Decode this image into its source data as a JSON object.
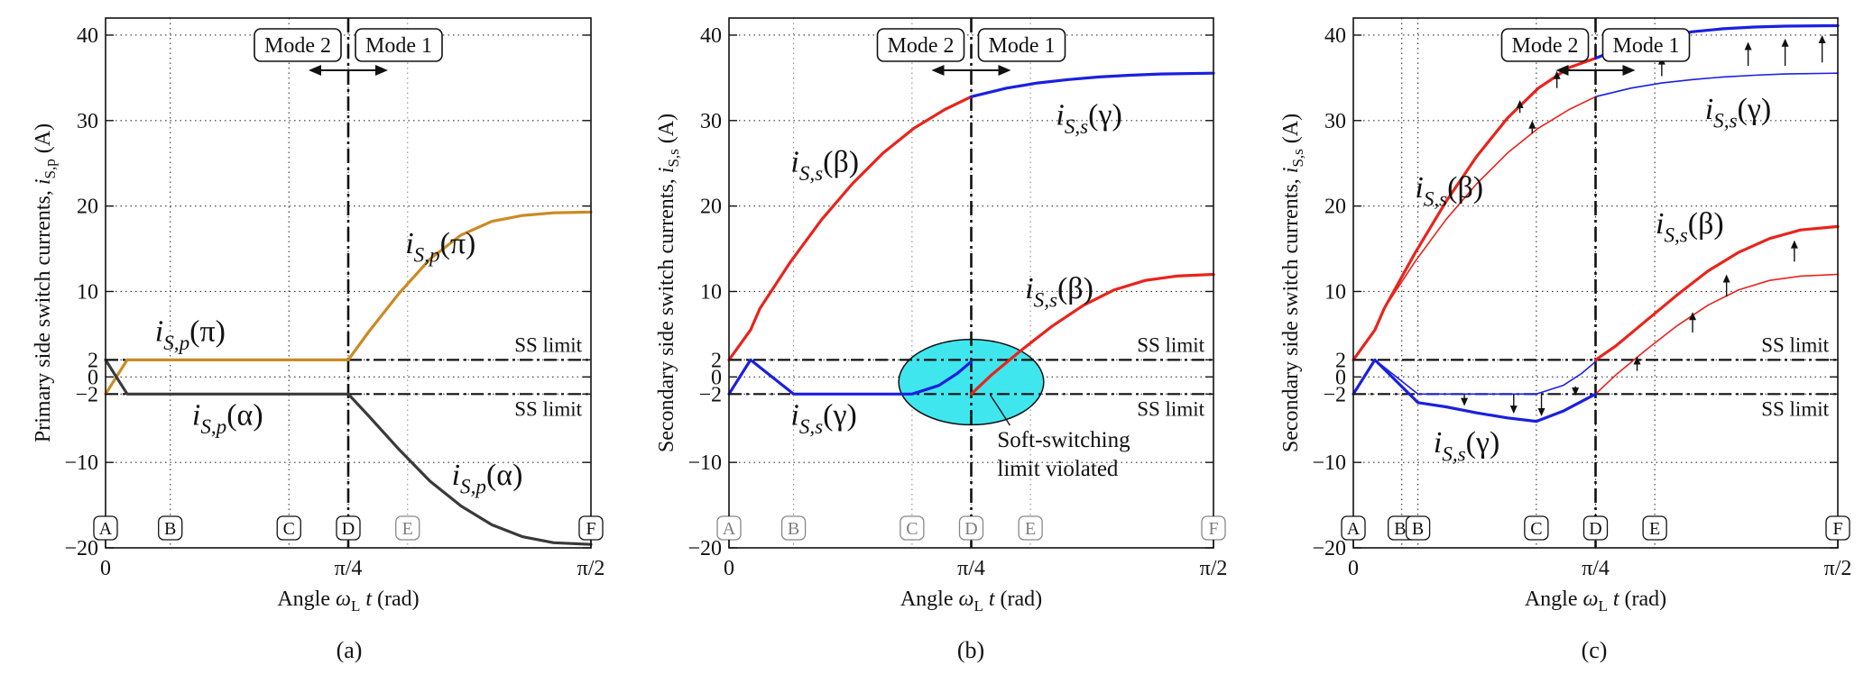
{
  "chart_data": [
    {
      "panel": "(a)",
      "type": "line",
      "ylabel": "Primary side switch currents, i_{S,p} (A)",
      "xlabel": "Angle ω_L t (rad)",
      "xlim": [
        0,
        1.5708
      ],
      "ylim": [
        -20,
        42
      ],
      "xticks": [
        {
          "v": 0,
          "label": "0"
        },
        {
          "v": 0.7854,
          "label": "π/4"
        },
        {
          "v": 1.5708,
          "label": "π/2"
        }
      ],
      "yticks": [
        {
          "v": -20,
          "label": "−20"
        },
        {
          "v": -10,
          "label": "−10"
        },
        {
          "v": -2,
          "label": "−2"
        },
        {
          "v": 0,
          "label": "0"
        },
        {
          "v": 2,
          "label": "2"
        },
        {
          "v": 10,
          "label": "10"
        },
        {
          "v": 20,
          "label": "20"
        },
        {
          "v": 30,
          "label": "30"
        },
        {
          "v": 40,
          "label": "40"
        }
      ],
      "ss_limits": [
        2,
        -2
      ],
      "ss_label": "SS limit",
      "modes": {
        "x": 0.7854,
        "left": "Mode 2",
        "right": "Mode 1"
      },
      "markers": [
        {
          "label": "A",
          "x": 0,
          "style": "solid"
        },
        {
          "label": "B",
          "x": 0.2094,
          "style": "solid"
        },
        {
          "label": "C",
          "x": 0.5934,
          "style": "solid"
        },
        {
          "label": "D",
          "x": 0.7854,
          "style": "solid"
        },
        {
          "label": "E",
          "x": 0.9774,
          "style": "faint"
        },
        {
          "label": "F",
          "x": 1.5708,
          "style": "solid"
        }
      ],
      "series": [
        {
          "name": "i_{S,p}(π)",
          "color": "#cc8a22",
          "width": 3.2,
          "points": [
            [
              0,
              -2
            ],
            [
              0.07,
              2
            ],
            [
              0.7854,
              2
            ],
            [
              0.85,
              5.2
            ],
            [
              0.95,
              9.8
            ],
            [
              1.05,
              13.8
            ],
            [
              1.15,
              16.6
            ],
            [
              1.25,
              18.2
            ],
            [
              1.35,
              18.9
            ],
            [
              1.45,
              19.2
            ],
            [
              1.5708,
              19.3
            ]
          ]
        },
        {
          "name": "i_{S,p}(α)",
          "color": "#3a3a3a",
          "width": 3.2,
          "points": [
            [
              0,
              2
            ],
            [
              0.07,
              -2
            ],
            [
              0.7854,
              -2
            ],
            [
              0.85,
              -4.5
            ],
            [
              0.95,
              -8.5
            ],
            [
              1.05,
              -12.2
            ],
            [
              1.15,
              -15.1
            ],
            [
              1.25,
              -17.3
            ],
            [
              1.35,
              -18.7
            ],
            [
              1.45,
              -19.4
            ],
            [
              1.5708,
              -19.6
            ]
          ]
        }
      ],
      "annotations": [
        {
          "text": "i_{S,p}(π)",
          "color": "#cc8a22",
          "x": 0.16,
          "y": 4.2
        },
        {
          "text": "i_{S,p}(π)",
          "color": "#cc8a22",
          "x": 0.97,
          "y": 14.5
        },
        {
          "text": "i_{S,p}(α)",
          "color": "#3a3a3a",
          "x": 0.28,
          "y": -5.6
        },
        {
          "text": "i_{S,p}(α)",
          "color": "#3a3a3a",
          "x": 1.12,
          "y": -12.6
        }
      ]
    },
    {
      "panel": "(b)",
      "type": "line",
      "ylabel": "Secondary side switch currents, i_{S,s} (A)",
      "xlabel": "Angle ω_L t (rad)",
      "xlim": [
        0,
        1.5708
      ],
      "ylim": [
        -20,
        42
      ],
      "xticks": [
        {
          "v": 0,
          "label": "0"
        },
        {
          "v": 0.7854,
          "label": "π/4"
        },
        {
          "v": 1.5708,
          "label": "π/2"
        }
      ],
      "yticks": [
        {
          "v": -20,
          "label": "−20"
        },
        {
          "v": -10,
          "label": "−10"
        },
        {
          "v": -2,
          "label": "−2"
        },
        {
          "v": 0,
          "label": "0"
        },
        {
          "v": 2,
          "label": "2"
        },
        {
          "v": 10,
          "label": "10"
        },
        {
          "v": 20,
          "label": "20"
        },
        {
          "v": 30,
          "label": "30"
        },
        {
          "v": 40,
          "label": "40"
        }
      ],
      "ss_limits": [
        2,
        -2
      ],
      "ss_label": "SS limit",
      "modes": {
        "x": 0.7854,
        "left": "Mode 2",
        "right": "Mode 1"
      },
      "markers": [
        {
          "label": "A",
          "x": 0,
          "style": "faint"
        },
        {
          "label": "B",
          "x": 0.2094,
          "style": "faint"
        },
        {
          "label": "C",
          "x": 0.5934,
          "style": "faint"
        },
        {
          "label": "D",
          "x": 0.7854,
          "style": "faint"
        },
        {
          "label": "E",
          "x": 0.9774,
          "style": "faint"
        },
        {
          "label": "F",
          "x": 1.5708,
          "style": "faint"
        }
      ],
      "series": [
        {
          "name": "i_{S,s}(β)",
          "color": "#e8241c",
          "width": 3.2,
          "points": [
            [
              0,
              2
            ],
            [
              0.07,
              5.5
            ],
            [
              0.1,
              8
            ],
            [
              0.2,
              13.5
            ],
            [
              0.3,
              18.4
            ],
            [
              0.4,
              22.6
            ],
            [
              0.5,
              26.2
            ],
            [
              0.6,
              29.1
            ],
            [
              0.7,
              31.3
            ],
            [
              0.7854,
              32.8
            ]
          ]
        },
        {
          "name": "i_{S,s}(γ)",
          "color": "#1a20e0",
          "width": 3.2,
          "points": [
            [
              0.7854,
              32.8
            ],
            [
              0.9,
              33.8
            ],
            [
              1.0,
              34.4
            ],
            [
              1.1,
              34.8
            ],
            [
              1.2,
              35.1
            ],
            [
              1.3,
              35.3
            ],
            [
              1.4,
              35.45
            ],
            [
              1.5708,
              35.55
            ]
          ]
        },
        {
          "name": "i_{S,s}(γ)",
          "color": "#1a20e0",
          "width": 3.2,
          "points": [
            [
              0,
              -2
            ],
            [
              0.07,
              2
            ],
            [
              0.2094,
              -2
            ],
            [
              0.5934,
              -2
            ],
            [
              0.68,
              -1
            ],
            [
              0.74,
              0.4
            ],
            [
              0.7854,
              1.8
            ]
          ]
        },
        {
          "name": "i_{S,s}(β)",
          "color": "#e8241c",
          "width": 3.2,
          "points": [
            [
              0.7854,
              -2
            ],
            [
              0.85,
              0.2
            ],
            [
              0.95,
              3.2
            ],
            [
              1.05,
              6
            ],
            [
              1.15,
              8.4
            ],
            [
              1.25,
              10.2
            ],
            [
              1.35,
              11.3
            ],
            [
              1.45,
              11.8
            ],
            [
              1.5708,
              12
            ]
          ]
        }
      ],
      "ellipse": {
        "cx": 0.7854,
        "cy": -0.6,
        "rx": 0.235,
        "ry": 5.0,
        "color": "#40e6ee"
      },
      "callout": {
        "text": [
          "Soft-switching",
          "limit violated"
        ],
        "x": 0.87,
        "y": -8.2
      },
      "annotations": [
        {
          "text": "i_{S,s}(β)",
          "color": "#e8241c",
          "x": 0.2,
          "y": 24.0
        },
        {
          "text": "i_{S,s}(γ)",
          "color": "#1a20e0",
          "x": 1.06,
          "y": 29.5
        },
        {
          "text": "i_{S,s}(β)",
          "color": "#e8241c",
          "x": 0.96,
          "y": 9.2
        },
        {
          "text": "i_{S,s}(γ)",
          "color": "#1a20e0",
          "x": 0.2,
          "y": -5.6
        }
      ]
    },
    {
      "panel": "(c)",
      "type": "line",
      "ylabel": "Secondary side switch currents, i_{S,s} (A)",
      "xlabel": "Angle ω_L t (rad)",
      "xlim": [
        0,
        1.5708
      ],
      "ylim": [
        -20,
        42
      ],
      "xticks": [
        {
          "v": 0,
          "label": "0"
        },
        {
          "v": 0.7854,
          "label": "π/4"
        },
        {
          "v": 1.5708,
          "label": "π/2"
        }
      ],
      "yticks": [
        {
          "v": -20,
          "label": "−20"
        },
        {
          "v": -10,
          "label": "−10"
        },
        {
          "v": -2,
          "label": "−2"
        },
        {
          "v": 0,
          "label": "0"
        },
        {
          "v": 2,
          "label": "2"
        },
        {
          "v": 10,
          "label": "10"
        },
        {
          "v": 20,
          "label": "20"
        },
        {
          "v": 30,
          "label": "30"
        },
        {
          "v": 40,
          "label": "40"
        }
      ],
      "ss_limits": [
        2,
        -2
      ],
      "ss_label": "SS limit",
      "modes": {
        "x": 0.7854,
        "left": "Mode 2",
        "right": "Mode 1"
      },
      "markers": [
        {
          "label": "A",
          "x": 0,
          "style": "solid"
        },
        {
          "label": "B'",
          "x": 0.1571,
          "style": "solid"
        },
        {
          "label": "B",
          "x": 0.2094,
          "style": "solid"
        },
        {
          "label": "C",
          "x": 0.5934,
          "style": "solid"
        },
        {
          "label": "D",
          "x": 0.7854,
          "style": "solid"
        },
        {
          "label": "E",
          "x": 0.9774,
          "style": "solid"
        },
        {
          "label": "F",
          "x": 1.5708,
          "style": "solid"
        }
      ],
      "series": [
        {
          "name": "i_{S,s}(β)",
          "color": "#e8241c",
          "width": 1.6,
          "points": [
            [
              0,
              2
            ],
            [
              0.07,
              5.5
            ],
            [
              0.1,
              8
            ],
            [
              0.2,
              13.5
            ],
            [
              0.3,
              18.4
            ],
            [
              0.4,
              22.6
            ],
            [
              0.5,
              26.2
            ],
            [
              0.6,
              29.1
            ],
            [
              0.7,
              31.3
            ],
            [
              0.7854,
              32.8
            ]
          ]
        },
        {
          "name": "i_{S,s}(γ)",
          "color": "#1a20e0",
          "width": 1.6,
          "points": [
            [
              0.7854,
              32.8
            ],
            [
              0.9,
              33.8
            ],
            [
              1.0,
              34.4
            ],
            [
              1.1,
              34.8
            ],
            [
              1.2,
              35.1
            ],
            [
              1.3,
              35.3
            ],
            [
              1.4,
              35.45
            ],
            [
              1.5708,
              35.55
            ]
          ]
        },
        {
          "name": "i_{S,s}(γ)",
          "color": "#1a20e0",
          "width": 1.6,
          "points": [
            [
              0,
              -2
            ],
            [
              0.07,
              2
            ],
            [
              0.2094,
              -2
            ],
            [
              0.5934,
              -2
            ],
            [
              0.68,
              -1
            ],
            [
              0.74,
              0.4
            ],
            [
              0.7854,
              1.8
            ]
          ]
        },
        {
          "name": "i_{S,s}(β)",
          "color": "#e8241c",
          "width": 1.6,
          "points": [
            [
              0.7854,
              -2
            ],
            [
              0.85,
              0.2
            ],
            [
              0.95,
              3.2
            ],
            [
              1.05,
              6
            ],
            [
              1.15,
              8.4
            ],
            [
              1.25,
              10.2
            ],
            [
              1.35,
              11.3
            ],
            [
              1.45,
              11.8
            ],
            [
              1.5708,
              12
            ]
          ]
        },
        {
          "name": "i_{S,s}(β)",
          "color": "#e8241c",
          "width": 3.2,
          "points": [
            [
              0,
              2
            ],
            [
              0.07,
              5.5
            ],
            [
              0.1,
              8
            ],
            [
              0.2,
              14.5
            ],
            [
              0.3,
              20.5
            ],
            [
              0.4,
              25.8
            ],
            [
              0.5,
              30.3
            ],
            [
              0.6,
              33.8
            ],
            [
              0.7,
              36.2
            ],
            [
              0.7854,
              37.3
            ]
          ]
        },
        {
          "name": "i_{S,s}(γ)",
          "color": "#1a20e0",
          "width": 3.2,
          "points": [
            [
              0.7854,
              37.3
            ],
            [
              0.9,
              38.9
            ],
            [
              1.0,
              39.8
            ],
            [
              1.1,
              40.4
            ],
            [
              1.2,
              40.75
            ],
            [
              1.3,
              40.95
            ],
            [
              1.4,
              41.05
            ],
            [
              1.5708,
              41.1
            ]
          ]
        },
        {
          "name": "i_{S,s}(γ)",
          "color": "#1a20e0",
          "width": 3.2,
          "points": [
            [
              0,
              -2
            ],
            [
              0.07,
              2
            ],
            [
              0.2094,
              -3
            ],
            [
              0.3,
              -3.5
            ],
            [
              0.4,
              -4.2
            ],
            [
              0.5,
              -4.8
            ],
            [
              0.5934,
              -5.2
            ],
            [
              0.68,
              -4.0
            ],
            [
              0.7854,
              -2.0
            ]
          ]
        },
        {
          "name": "i_{S,s}(β)",
          "color": "#e8241c",
          "width": 3.2,
          "points": [
            [
              0.7854,
              2
            ],
            [
              0.85,
              3.6
            ],
            [
              0.95,
              6.6
            ],
            [
              1.05,
              9.6
            ],
            [
              1.15,
              12.4
            ],
            [
              1.25,
              14.6
            ],
            [
              1.35,
              16.2
            ],
            [
              1.45,
              17.2
            ],
            [
              1.5708,
              17.6
            ]
          ]
        }
      ],
      "arrows": [
        {
          "x": 0.54,
          "y0": 30.9,
          "y1": 32.4
        },
        {
          "x": 0.66,
          "y0": 33.8,
          "y1": 35.8
        },
        {
          "x": 0.58,
          "y0": 28.5,
          "y1": 30.0
        },
        {
          "x": 1.0,
          "y0": 35.2,
          "y1": 37.5
        },
        {
          "x": 1.28,
          "y0": 36.4,
          "y1": 39.2
        },
        {
          "x": 1.4,
          "y0": 36.4,
          "y1": 39.6
        },
        {
          "x": 1.52,
          "y0": 36.8,
          "y1": 40.0
        },
        {
          "x": 0.92,
          "y0": 0.7,
          "y1": 2.4
        },
        {
          "x": 1.1,
          "y0": 5.2,
          "y1": 7.6
        },
        {
          "x": 1.21,
          "y0": 9.4,
          "y1": 12.0
        },
        {
          "x": 1.43,
          "y0": 13.5,
          "y1": 16.0
        },
        {
          "x": 0.36,
          "y0": -2.0,
          "y1": -3.4
        },
        {
          "x": 0.52,
          "y0": -2.0,
          "y1": -4.3
        },
        {
          "x": 0.61,
          "y0": -2.0,
          "y1": -4.6
        },
        {
          "x": 0.72,
          "y0": -1.1,
          "y1": -2.2
        }
      ],
      "annotations": [
        {
          "text": "i_{S,s}(β)",
          "color": "#e8241c",
          "x": 0.2,
          "y": 21.0
        },
        {
          "text": "i_{S,s}(γ)",
          "color": "#1a20e0",
          "x": 1.14,
          "y": 30.2
        },
        {
          "text": "i_{S,s}(β)",
          "color": "#e8241c",
          "x": 0.98,
          "y": 16.8
        },
        {
          "text": "i_{S,s}(γ)",
          "color": "#1a20e0",
          "x": 0.26,
          "y": -8.8
        }
      ]
    }
  ],
  "caption_labels": [
    "(a)",
    "(b)",
    "(c)"
  ]
}
